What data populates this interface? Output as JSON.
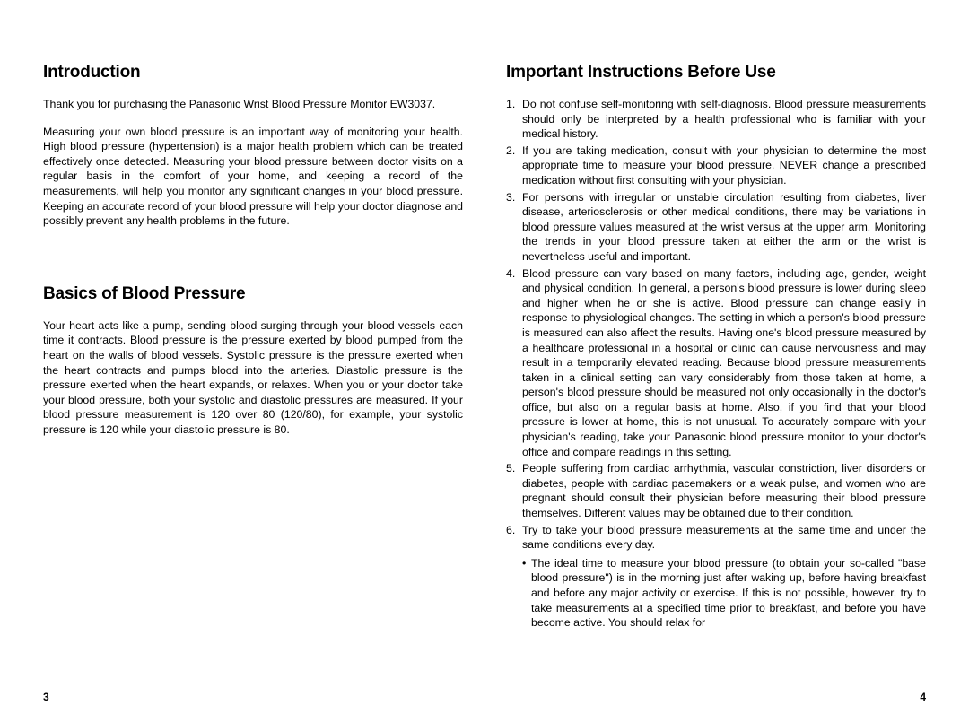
{
  "left": {
    "section1": {
      "heading": "Introduction",
      "p1": "Thank you for purchasing the Panasonic Wrist Blood Pressure Monitor EW3037.",
      "p2": "Measuring your own blood pressure is an important way of monitoring your health. High blood pressure (hypertension) is a major health problem which can be treated effectively once detected. Measuring your blood pressure between doctor visits on a regular basis in the comfort of your home, and keeping a record of the measurements, will help you monitor any significant changes in your blood pressure. Keeping an accurate record of your blood pressure will help your doctor diagnose and possibly prevent any health problems in the future."
    },
    "section2": {
      "heading": "Basics of Blood Pressure",
      "p1": "Your heart acts like a pump, sending blood surging through your blood vessels each time it contracts. Blood pressure is the pressure exerted by blood pumped from the heart on the walls of blood vessels. Systolic pressure is the pressure exerted when the heart contracts and pumps blood into the arteries. Diastolic pressure is the pressure exerted when the heart expands, or relaxes. When you or your doctor take your blood pressure, both your systolic and diastolic pressures are measured. If your blood pressure measurement is 120 over 80 (120/80), for example, your systolic pressure is 120 while your diastolic pressure is 80."
    },
    "pageNum": "3"
  },
  "right": {
    "heading": "Important Instructions Before Use",
    "items": [
      "Do not confuse self-monitoring with self-diagnosis. Blood pressure measurements should only be interpreted by a health professional who is familiar with your medical history.",
      "If you are taking medication, consult with your physician to determine the most appropriate time to measure your blood pressure. NEVER change a prescribed medication without first consulting with your physician.",
      "For persons with irregular or unstable circulation resulting from diabetes, liver disease, arteriosclerosis or other medical conditions, there may be variations in blood pressure values measured at the wrist versus at the upper arm. Monitoring the trends in your blood pressure taken at either the arm or the wrist is nevertheless useful and important.",
      "Blood pressure can vary based on many factors, including age, gender, weight and physical condition. In general, a person's blood pressure is lower during sleep and higher when he or she is active. Blood pressure can change easily in response to physiological changes. The setting in which a person's blood pressure is measured can also affect the results. Having one's blood pressure measured by a healthcare professional in a hospital or clinic can cause nervousness and may result in a temporarily elevated reading. Because blood pressure measurements taken in a clinical setting can vary considerably from those taken at home, a person's blood pressure should be measured not only occasionally in the doctor's office, but also on a regular basis at home. Also, if you find that your blood pressure is lower at home, this is not unusual. To accurately compare with your physician's reading, take your Panasonic blood pressure monitor to your doctor's office and compare readings in this setting.",
      "People suffering from cardiac arrhythmia, vascular constriction, liver disorders or diabetes, people with cardiac pacemakers or a weak pulse, and women who are pregnant should consult their physician before measuring their blood pressure themselves. Different values may be obtained due to their condition.",
      "Try to take your blood pressure measurements at the same time and under the same conditions every day."
    ],
    "bullet": "The ideal time to measure your blood pressure (to obtain your so-called \"base blood pressure\") is in the morning just after waking up, before having breakfast and before any major activity or exercise. If this is not possible, however, try to take measurements at a specified time prior to breakfast, and before you have become active. You should relax for",
    "pageNum": "4"
  }
}
